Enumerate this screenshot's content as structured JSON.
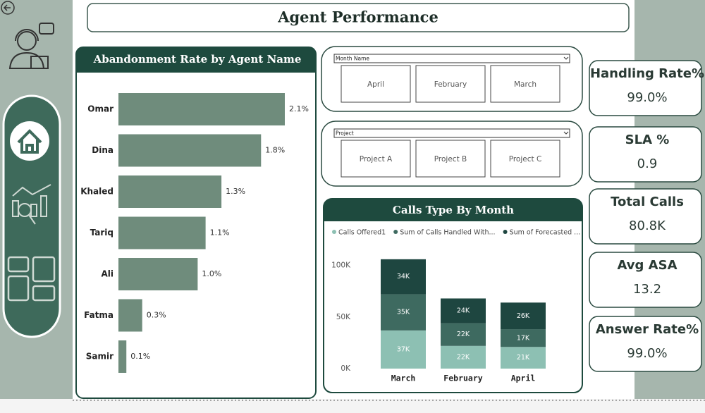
{
  "header": {
    "title": "Agent Performance"
  },
  "abandonment_chart": {
    "type": "bar",
    "title": "Abandonment Rate by Agent Name",
    "categories": [
      "Omar",
      "Dina",
      "Khaled",
      "Tariq",
      "Ali",
      "Fatma",
      "Samir"
    ],
    "values": [
      2.1,
      1.8,
      1.3,
      1.1,
      1.0,
      0.3,
      0.1
    ],
    "value_labels": [
      "2.1%",
      "1.8%",
      "1.3%",
      "1.1%",
      "1.0%",
      "0.3%",
      "0.1%"
    ],
    "color": "#6f8c7c"
  },
  "filters": [
    {
      "label": "Month Name",
      "options": [
        "April",
        "February",
        "March"
      ]
    },
    {
      "label": "Project",
      "options": [
        "Project A",
        "Project B",
        "Project C"
      ]
    }
  ],
  "calls_chart": {
    "type": "stacked-bar",
    "title": "Calls Type By Month",
    "categories": [
      "March",
      "February",
      "April"
    ],
    "series": [
      {
        "name": "Calls Offered1",
        "color": "#8dc0b3",
        "values": [
          37000,
          22000,
          21000
        ],
        "value_labels": [
          "37K",
          "22K",
          "21K"
        ]
      },
      {
        "name": "Sum of Calls Handled With...",
        "color": "#3e6a60",
        "values": [
          35000,
          22000,
          17000
        ],
        "value_labels": [
          "35K",
          "22K",
          "17K"
        ]
      },
      {
        "name": "Sum of Forecasted ...",
        "color": "#1e4640",
        "values": [
          34000,
          24000,
          26000
        ],
        "value_labels": [
          "34K",
          "24K",
          "26K"
        ]
      }
    ],
    "ylim": [
      0,
      110000
    ],
    "yticks": [
      {
        "value": 0,
        "label": "0K"
      },
      {
        "value": 50000,
        "label": "50K"
      },
      {
        "value": 100000,
        "label": "100K"
      }
    ]
  },
  "kpis": [
    {
      "label": "Handling Rate%",
      "value": "99.0%"
    },
    {
      "label": "SLA %",
      "value": "0.9"
    },
    {
      "label": "Total Calls",
      "value": "80.8K"
    },
    {
      "label": "Avg ASA",
      "value": "13.2"
    },
    {
      "label": "Answer Rate%",
      "value": "99.0%"
    }
  ]
}
